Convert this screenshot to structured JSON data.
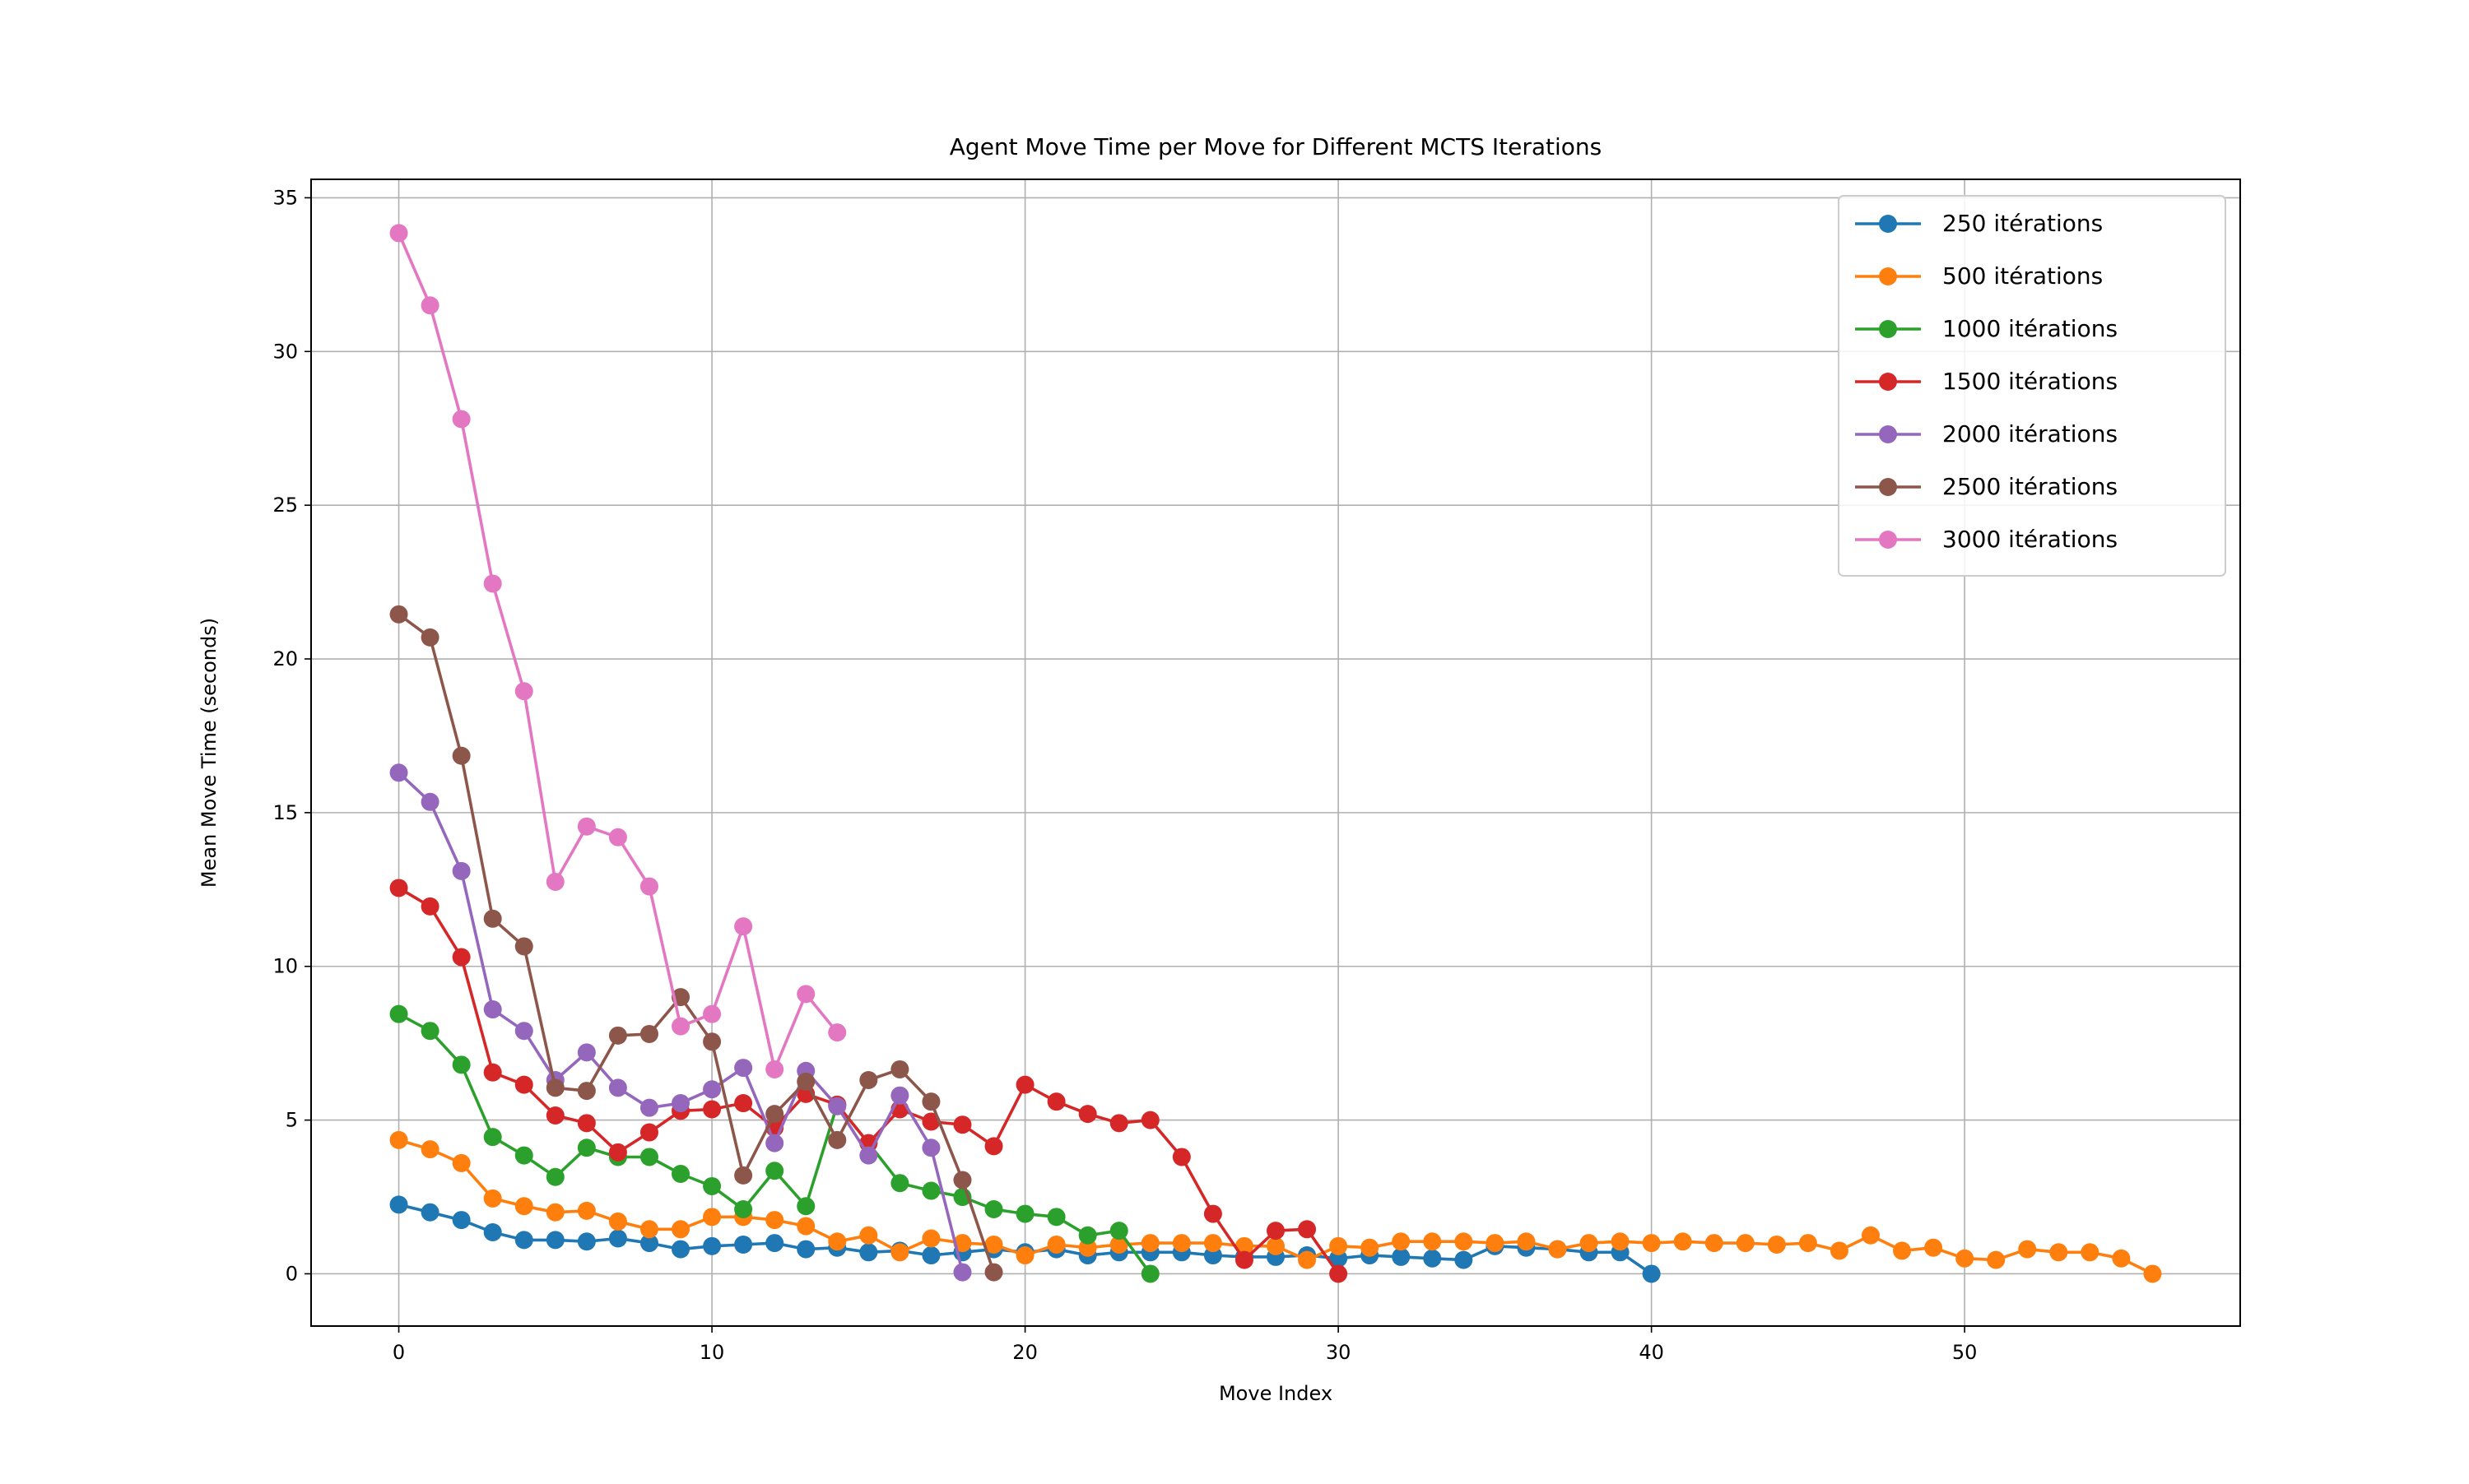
{
  "chart_data": {
    "type": "line",
    "title": "Agent Move Time per Move for Different MCTS Iterations",
    "xlabel": "Move Index",
    "ylabel": "Mean Move Time (seconds)",
    "xlim": [
      -2.8,
      58.8
    ],
    "ylim": [
      -1.7,
      35.6
    ],
    "xticks": [
      0,
      10,
      20,
      30,
      40,
      50
    ],
    "yticks": [
      0,
      5,
      10,
      15,
      20,
      25,
      30,
      35
    ],
    "grid": true,
    "legend_position": "top-right",
    "series": [
      {
        "name": "250 itérations",
        "color": "#1f77b4",
        "values": [
          2.25,
          2.0,
          1.75,
          1.35,
          1.1,
          1.1,
          1.05,
          1.15,
          1.0,
          0.8,
          0.9,
          0.95,
          1.0,
          0.8,
          0.85,
          0.7,
          0.75,
          0.6,
          0.7,
          0.8,
          0.7,
          0.8,
          0.6,
          0.7,
          0.7,
          0.7,
          0.6,
          0.55,
          0.55,
          0.6,
          0.5,
          0.6,
          0.55,
          0.5,
          0.45,
          0.9,
          0.85,
          0.8,
          0.7,
          0.7,
          0.0
        ]
      },
      {
        "name": "500 itérations",
        "color": "#ff7f0e",
        "values": [
          4.35,
          4.05,
          3.6,
          2.45,
          2.2,
          2.0,
          2.05,
          1.7,
          1.45,
          1.45,
          1.85,
          1.85,
          1.75,
          1.55,
          1.05,
          1.25,
          0.7,
          1.15,
          1.0,
          0.95,
          0.6,
          0.95,
          0.85,
          0.95,
          1.0,
          1.0,
          1.0,
          0.9,
          0.9,
          0.45,
          0.9,
          0.85,
          1.05,
          1.05,
          1.05,
          1.0,
          1.05,
          0.8,
          1.0,
          1.05,
          1.0,
          1.05,
          1.0,
          1.0,
          0.95,
          1.0,
          0.75,
          1.25,
          0.75,
          0.85,
          0.5,
          0.45,
          0.8,
          0.7,
          0.7,
          0.5,
          0.0
        ]
      },
      {
        "name": "1000 itérations",
        "color": "#2ca02c",
        "values": [
          8.45,
          7.9,
          6.8,
          4.45,
          3.85,
          3.15,
          4.1,
          3.8,
          3.8,
          3.25,
          2.85,
          2.1,
          3.35,
          2.2,
          5.5,
          4.25,
          2.95,
          2.7,
          2.5,
          2.1,
          1.95,
          1.85,
          1.25,
          1.4,
          0.0
        ]
      },
      {
        "name": "1500 itérations",
        "color": "#d62728",
        "values": [
          12.55,
          11.95,
          10.3,
          6.55,
          6.15,
          5.15,
          4.9,
          3.95,
          4.6,
          5.3,
          5.35,
          5.55,
          4.75,
          5.85,
          5.5,
          4.25,
          5.35,
          4.95,
          4.85,
          4.15,
          6.15,
          5.6,
          5.2,
          4.9,
          5.0,
          3.8,
          1.95,
          0.45,
          1.4,
          1.45,
          0.0
        ]
      },
      {
        "name": "2000 itérations",
        "color": "#9467bd",
        "values": [
          16.3,
          15.35,
          13.1,
          8.6,
          7.9,
          6.3,
          7.2,
          6.05,
          5.4,
          5.55,
          6.0,
          6.7,
          4.25,
          6.6,
          5.45,
          3.85,
          5.8,
          4.1,
          0.05
        ]
      },
      {
        "name": "2500 itérations",
        "color": "#8c564b",
        "values": [
          21.45,
          20.7,
          16.85,
          11.55,
          10.65,
          6.05,
          5.95,
          7.75,
          7.8,
          9.0,
          7.55,
          3.2,
          5.2,
          6.25,
          4.35,
          6.3,
          6.65,
          5.6,
          3.05,
          0.05
        ]
      },
      {
        "name": "3000 itérations",
        "color": "#e377c2",
        "values": [
          33.85,
          31.5,
          27.8,
          22.45,
          18.95,
          12.75,
          14.55,
          14.2,
          12.6,
          8.05,
          8.45,
          11.3,
          6.65,
          9.1,
          7.85
        ]
      }
    ]
  }
}
